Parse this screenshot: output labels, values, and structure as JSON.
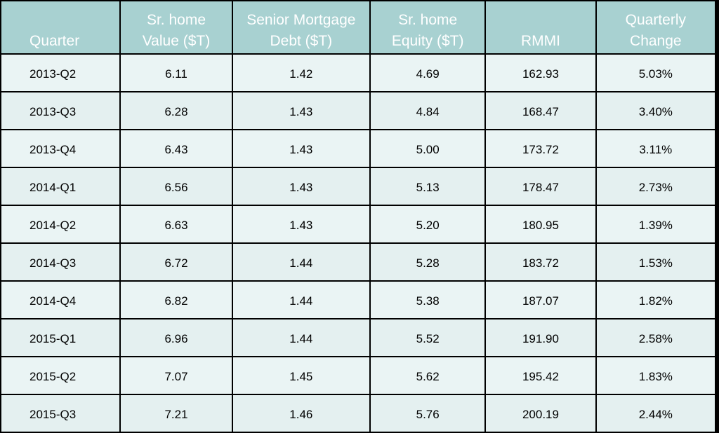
{
  "chart_data": {
    "type": "table",
    "columns": [
      [
        "Quarter"
      ],
      [
        "Sr. home",
        "Value ($T)"
      ],
      [
        "Senior Mortgage",
        "Debt ($T)"
      ],
      [
        "Sr. home",
        "Equity ($T)"
      ],
      [
        "RMMI"
      ],
      [
        "Quarterly",
        "Change"
      ]
    ],
    "rows": [
      [
        "2013-Q2",
        "6.11",
        "1.42",
        "4.69",
        "162.93",
        "5.03%"
      ],
      [
        "2013-Q3",
        "6.28",
        "1.43",
        "4.84",
        "168.47",
        "3.40%"
      ],
      [
        "2013-Q4",
        "6.43",
        "1.43",
        "5.00",
        "173.72",
        "3.11%"
      ],
      [
        "2014-Q1",
        "6.56",
        "1.43",
        "5.13",
        "178.47",
        "2.73%"
      ],
      [
        "2014-Q2",
        "6.63",
        "1.43",
        "5.20",
        "180.95",
        "1.39%"
      ],
      [
        "2014-Q3",
        "6.72",
        "1.44",
        "5.28",
        "183.72",
        "1.53%"
      ],
      [
        "2014-Q4",
        "6.82",
        "1.44",
        "5.38",
        "187.07",
        "1.82%"
      ],
      [
        "2015-Q1",
        "6.96",
        "1.44",
        "5.52",
        "191.90",
        "2.58%"
      ],
      [
        "2015-Q2",
        "7.07",
        "1.45",
        "5.62",
        "195.42",
        "1.83%"
      ],
      [
        "2015-Q3",
        "7.21",
        "1.46",
        "5.76",
        "200.19",
        "2.44%"
      ]
    ]
  },
  "colors": {
    "header_background": "#a8d1d1",
    "header_text": "#ffffff",
    "row_background": "#eaf4f4",
    "cell_text": "#000000",
    "frame": "#000000"
  }
}
